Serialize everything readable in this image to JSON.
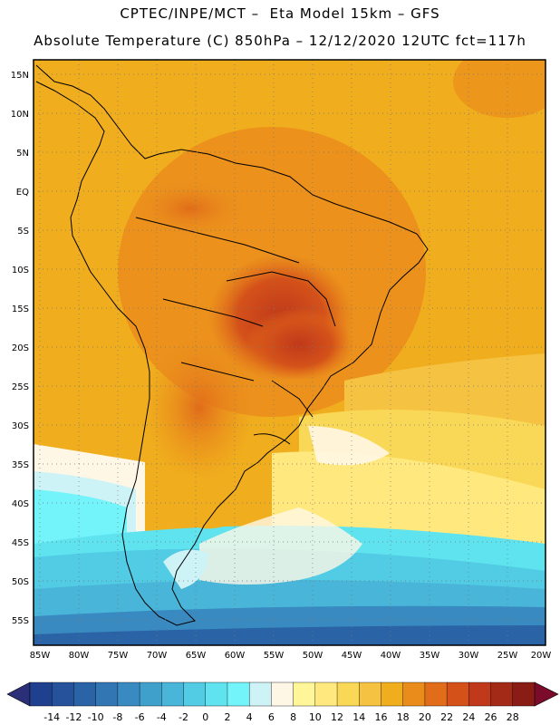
{
  "header": {
    "line1": "CPTEC/INPE/MCT –  Eta Model 15km – GFS",
    "line2": "Absolute Temperature (C) 850hPa – 12/12/2020 12UTC fct=117h"
  },
  "axes": {
    "lat_labels": [
      "15N",
      "10N",
      "5N",
      "EQ",
      "5S",
      "10S",
      "15S",
      "20S",
      "25S",
      "30S",
      "35S",
      "40S",
      "45S",
      "50S",
      "55S"
    ],
    "lon_labels": [
      "85W",
      "80W",
      "75W",
      "70W",
      "65W",
      "60W",
      "55W",
      "50W",
      "45W",
      "40W",
      "35W",
      "30W",
      "25W",
      "20W"
    ]
  },
  "colorbar": {
    "ticks": [
      "-14",
      "-12",
      "-10",
      "-8",
      "-6",
      "-4",
      "-2",
      "0",
      "2",
      "4",
      "6",
      "8",
      "10",
      "12",
      "14",
      "16",
      "18",
      "20",
      "22",
      "24",
      "26",
      "28"
    ],
    "colors": [
      "#1f3f8f",
      "#25529a",
      "#2b64a6",
      "#3277b3",
      "#398ac0",
      "#40a0cc",
      "#48b5d9",
      "#52cbe4",
      "#5fe3ef",
      "#72f4fa",
      "#cdf3f7",
      "#fff7e6",
      "#fff69a",
      "#ffe97f",
      "#fad857",
      "#f5c242",
      "#f0ad1d",
      "#ea8c1c",
      "#e16c1a",
      "#d4511a",
      "#c0391a",
      "#a22a17",
      "#8a1c16"
    ],
    "under_color": "#2b2f77",
    "over_color": "#7a0b2b"
  }
}
